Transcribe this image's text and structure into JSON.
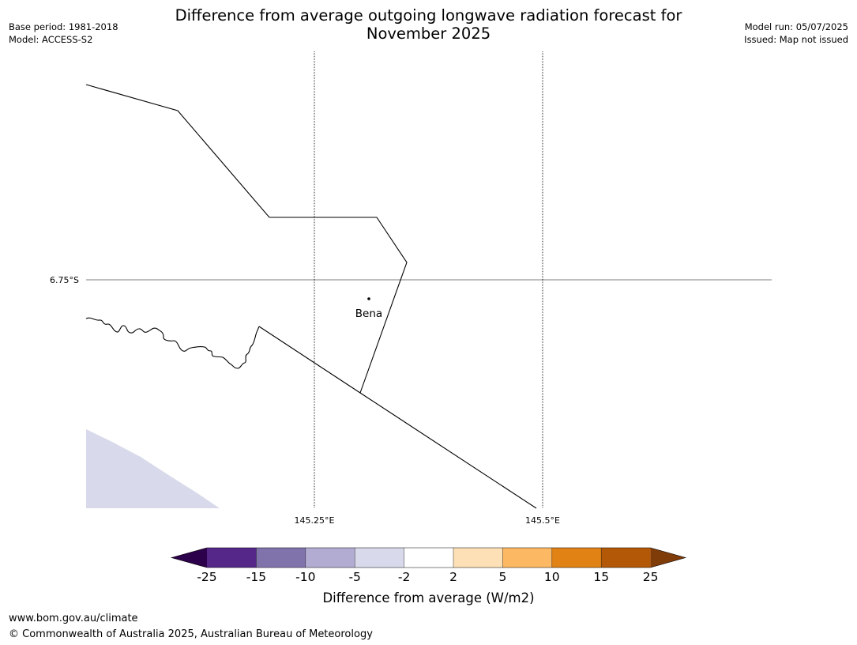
{
  "title_line1": "Difference from average outgoing longwave radiation forecast for",
  "title_line2": "November 2025",
  "base_period": "Base period: 1981-2018",
  "model": "Model: ACCESS-S2",
  "model_run": "Model run: 05/07/2025",
  "issued": "Issued: Map not issued",
  "map": {
    "lat_label": "6.75°S",
    "lon_labels": [
      "145.25°E",
      "145.5°E"
    ],
    "place_name": "Bena",
    "shading_category": "-5 to -2"
  },
  "legend": {
    "label": "Difference from average (W/m2)",
    "ticks": [
      "-25",
      "-15",
      "-10",
      "-5",
      "-2",
      "2",
      "5",
      "10",
      "15",
      "25"
    ],
    "colors": {
      "extend_low": "#2d004b",
      "bins": [
        "#542788",
        "#8073ac",
        "#b2abd2",
        "#d8daeb",
        "#ffffff",
        "#fee0b6",
        "#fdb863",
        "#e08214",
        "#b35806"
      ],
      "extend_high": "#7f3b08"
    }
  },
  "footer_url": "www.bom.gov.au/climate",
  "footer_copyright": "© Commonwealth of Australia 2025, Australian Bureau of Meteorology"
}
